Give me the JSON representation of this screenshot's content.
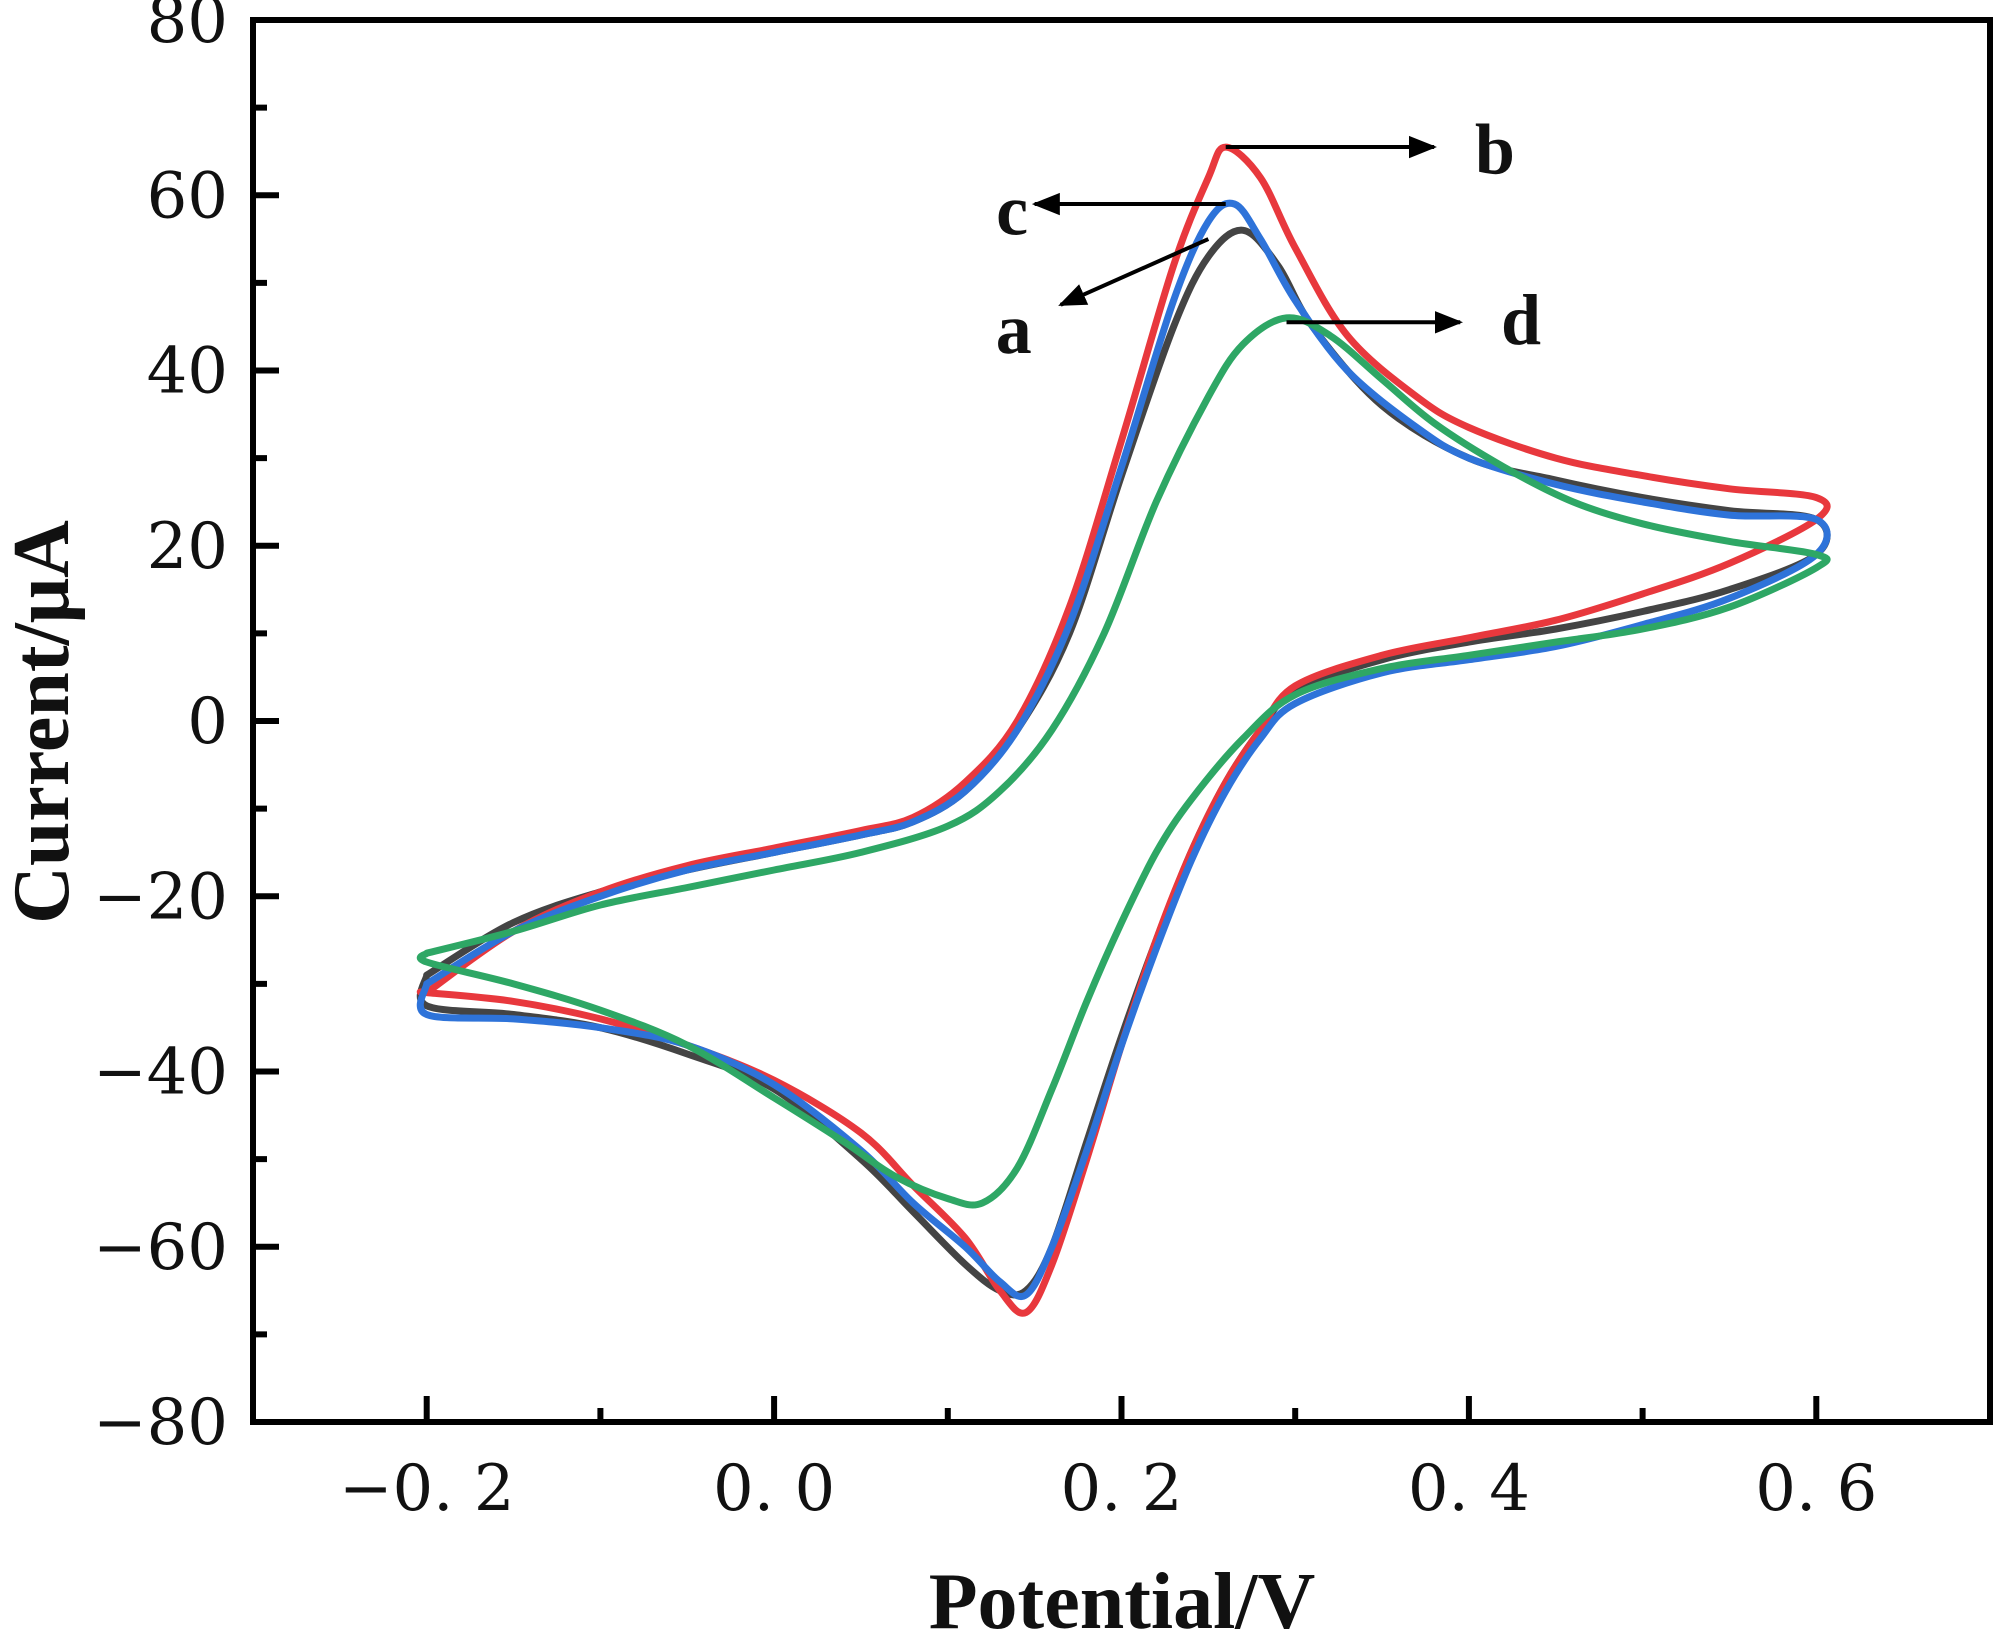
{
  "chart_data": {
    "type": "line",
    "title": "",
    "xlabel": "Potential/V",
    "ylabel": "Current/μA",
    "xlim": [
      -0.3,
      0.7
    ],
    "ylim": [
      -80,
      80
    ],
    "x_ticks": [
      -0.2,
      0.0,
      0.2,
      0.4,
      0.6
    ],
    "x_tick_labels": [
      "−0. 2",
      "0. 0",
      "0. 2",
      "0. 4",
      "0. 6"
    ],
    "y_ticks": [
      -80,
      -60,
      -40,
      -20,
      0,
      20,
      40,
      60,
      80
    ],
    "y_tick_labels": [
      "−80",
      "−60",
      "−40",
      "−20",
      "0",
      "20",
      "40",
      "60",
      "80"
    ],
    "grid": false,
    "series": [
      {
        "name": "a",
        "color": "#444444",
        "forward": [
          [
            -0.2,
            -29
          ],
          [
            -0.15,
            -23
          ],
          [
            -0.1,
            -19.5
          ],
          [
            -0.05,
            -17
          ],
          [
            0.0,
            -15
          ],
          [
            0.05,
            -13
          ],
          [
            0.08,
            -11.5
          ],
          [
            0.11,
            -8
          ],
          [
            0.14,
            -1
          ],
          [
            0.17,
            10
          ],
          [
            0.2,
            28
          ],
          [
            0.23,
            45
          ],
          [
            0.25,
            53
          ],
          [
            0.27,
            56
          ],
          [
            0.29,
            52
          ],
          [
            0.31,
            45
          ],
          [
            0.35,
            36
          ],
          [
            0.4,
            30
          ],
          [
            0.45,
            27.5
          ],
          [
            0.5,
            25.5
          ],
          [
            0.55,
            24
          ],
          [
            0.6,
            23
          ]
        ],
        "reverse": [
          [
            0.6,
            19
          ],
          [
            0.55,
            15
          ],
          [
            0.5,
            12.5
          ],
          [
            0.45,
            10.5
          ],
          [
            0.4,
            9
          ],
          [
            0.35,
            7
          ],
          [
            0.3,
            3.5
          ],
          [
            0.28,
            -1
          ],
          [
            0.26,
            -7
          ],
          [
            0.24,
            -15
          ],
          [
            0.22,
            -25
          ],
          [
            0.2,
            -36
          ],
          [
            0.18,
            -48
          ],
          [
            0.16,
            -60
          ],
          [
            0.145,
            -65
          ],
          [
            0.13,
            -65
          ],
          [
            0.11,
            -62
          ],
          [
            0.08,
            -56
          ],
          [
            0.05,
            -50
          ],
          [
            0.0,
            -42
          ],
          [
            -0.05,
            -38
          ],
          [
            -0.1,
            -35
          ],
          [
            -0.15,
            -33.5
          ],
          [
            -0.2,
            -32.5
          ]
        ]
      },
      {
        "name": "b",
        "color": "#e8383d",
        "forward": [
          [
            -0.2,
            -31
          ],
          [
            -0.15,
            -24
          ],
          [
            -0.1,
            -19.5
          ],
          [
            -0.05,
            -16.5
          ],
          [
            0.0,
            -14.5
          ],
          [
            0.05,
            -12.5
          ],
          [
            0.08,
            -11
          ],
          [
            0.11,
            -7
          ],
          [
            0.14,
            0
          ],
          [
            0.17,
            13
          ],
          [
            0.2,
            32
          ],
          [
            0.23,
            52
          ],
          [
            0.25,
            62
          ],
          [
            0.26,
            65.5
          ],
          [
            0.28,
            62
          ],
          [
            0.3,
            54
          ],
          [
            0.33,
            44
          ],
          [
            0.37,
            37
          ],
          [
            0.4,
            33.5
          ],
          [
            0.45,
            30
          ],
          [
            0.5,
            28
          ],
          [
            0.55,
            26.5
          ],
          [
            0.6,
            25.5
          ]
        ],
        "reverse": [
          [
            0.6,
            23
          ],
          [
            0.55,
            18
          ],
          [
            0.5,
            14.5
          ],
          [
            0.45,
            11.5
          ],
          [
            0.4,
            9.5
          ],
          [
            0.35,
            7.5
          ],
          [
            0.3,
            4
          ],
          [
            0.28,
            -1
          ],
          [
            0.26,
            -7
          ],
          [
            0.24,
            -15
          ],
          [
            0.22,
            -25
          ],
          [
            0.2,
            -37
          ],
          [
            0.18,
            -50
          ],
          [
            0.16,
            -62
          ],
          [
            0.145,
            -67.5
          ],
          [
            0.13,
            -65
          ],
          [
            0.11,
            -59
          ],
          [
            0.08,
            -53
          ],
          [
            0.05,
            -47
          ],
          [
            0.0,
            -41
          ],
          [
            -0.05,
            -37
          ],
          [
            -0.1,
            -34
          ],
          [
            -0.15,
            -32
          ],
          [
            -0.2,
            -31
          ]
        ]
      },
      {
        "name": "c",
        "color": "#2e73d9",
        "forward": [
          [
            -0.2,
            -30
          ],
          [
            -0.15,
            -24
          ],
          [
            -0.1,
            -20
          ],
          [
            -0.05,
            -17
          ],
          [
            0.0,
            -15
          ],
          [
            0.05,
            -13
          ],
          [
            0.08,
            -11.5
          ],
          [
            0.11,
            -8
          ],
          [
            0.14,
            -1
          ],
          [
            0.17,
            11
          ],
          [
            0.2,
            29
          ],
          [
            0.23,
            48
          ],
          [
            0.25,
            57
          ],
          [
            0.265,
            59
          ],
          [
            0.28,
            55
          ],
          [
            0.3,
            48
          ],
          [
            0.33,
            40
          ],
          [
            0.37,
            33.5
          ],
          [
            0.4,
            30
          ],
          [
            0.45,
            27
          ],
          [
            0.5,
            25
          ],
          [
            0.55,
            23.5
          ],
          [
            0.6,
            23
          ]
        ],
        "reverse": [
          [
            0.6,
            19
          ],
          [
            0.55,
            14
          ],
          [
            0.5,
            11
          ],
          [
            0.45,
            8.5
          ],
          [
            0.4,
            7
          ],
          [
            0.35,
            5.5
          ],
          [
            0.3,
            2
          ],
          [
            0.28,
            -2
          ],
          [
            0.26,
            -8
          ],
          [
            0.24,
            -16
          ],
          [
            0.22,
            -26
          ],
          [
            0.2,
            -37
          ],
          [
            0.18,
            -49
          ],
          [
            0.16,
            -60
          ],
          [
            0.145,
            -65.5
          ],
          [
            0.13,
            -64
          ],
          [
            0.11,
            -60
          ],
          [
            0.08,
            -55
          ],
          [
            0.05,
            -49
          ],
          [
            0.0,
            -41.5
          ],
          [
            -0.05,
            -37
          ],
          [
            -0.1,
            -35
          ],
          [
            -0.15,
            -34
          ],
          [
            -0.2,
            -33.5
          ]
        ]
      },
      {
        "name": "d",
        "color": "#2ea765",
        "forward": [
          [
            -0.2,
            -26.5
          ],
          [
            -0.15,
            -24
          ],
          [
            -0.1,
            -21
          ],
          [
            -0.05,
            -19
          ],
          [
            0.0,
            -17
          ],
          [
            0.05,
            -15
          ],
          [
            0.1,
            -12
          ],
          [
            0.13,
            -8
          ],
          [
            0.16,
            -1
          ],
          [
            0.19,
            10
          ],
          [
            0.22,
            25
          ],
          [
            0.25,
            37
          ],
          [
            0.27,
            43
          ],
          [
            0.295,
            46
          ],
          [
            0.32,
            44
          ],
          [
            0.35,
            39
          ],
          [
            0.38,
            34
          ],
          [
            0.42,
            29
          ],
          [
            0.46,
            25
          ],
          [
            0.5,
            22.5
          ],
          [
            0.55,
            20.5
          ],
          [
            0.6,
            19
          ]
        ],
        "reverse": [
          [
            0.6,
            17.5
          ],
          [
            0.55,
            13
          ],
          [
            0.5,
            10.5
          ],
          [
            0.45,
            9
          ],
          [
            0.4,
            7.5
          ],
          [
            0.35,
            6
          ],
          [
            0.3,
            3
          ],
          [
            0.27,
            -2
          ],
          [
            0.24,
            -9
          ],
          [
            0.22,
            -15
          ],
          [
            0.2,
            -23
          ],
          [
            0.18,
            -32
          ],
          [
            0.16,
            -42
          ],
          [
            0.14,
            -51
          ],
          [
            0.12,
            -55
          ],
          [
            0.1,
            -54.5
          ],
          [
            0.07,
            -52
          ],
          [
            0.04,
            -48
          ],
          [
            0.0,
            -43
          ],
          [
            -0.05,
            -37
          ],
          [
            -0.1,
            -33
          ],
          [
            -0.15,
            -30
          ],
          [
            -0.2,
            -27.5
          ]
        ]
      }
    ],
    "annotations": [
      {
        "label": "b",
        "series": "b",
        "from": [
          0.26,
          65.5
        ],
        "to": [
          0.38,
          65.5
        ],
        "text_at": [
          0.415,
          62.5
        ]
      },
      {
        "label": "c",
        "series": "c",
        "from": [
          0.26,
          59
        ],
        "to": [
          0.15,
          59
        ],
        "text_at": [
          0.137,
          55.5
        ]
      },
      {
        "label": "a",
        "series": "a",
        "from": [
          0.25,
          55
        ],
        "to": [
          0.165,
          47.5
        ],
        "text_at": [
          0.138,
          42
        ]
      },
      {
        "label": "d",
        "series": "d",
        "from": [
          0.295,
          45.5
        ],
        "to": [
          0.395,
          45.5
        ],
        "text_at": [
          0.43,
          43
        ]
      }
    ]
  }
}
